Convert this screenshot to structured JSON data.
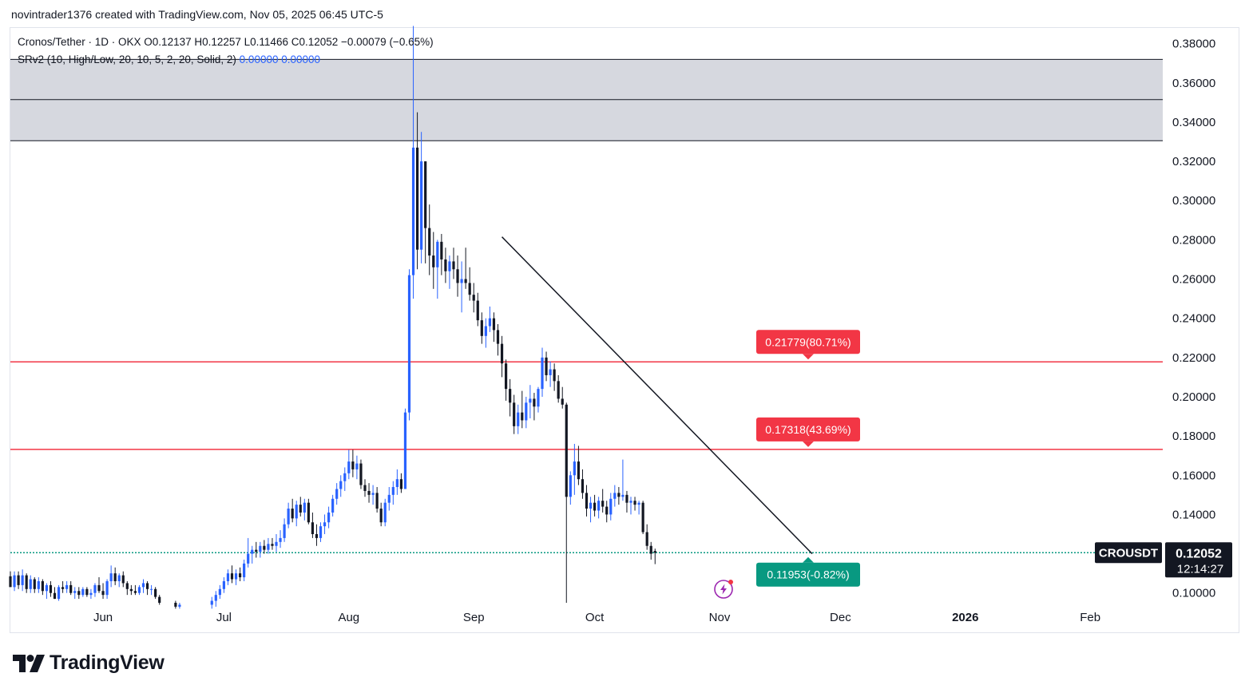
{
  "header": {
    "caption": "novintrader1376 created with TradingView.com, Nov 05, 2025 06:45 UTC-5"
  },
  "legend": {
    "line1": "Cronos/Tether · 1D · OKX  O0.12137  H0.12257  L0.11466  C0.12052  −0.00079 (−0.65%)",
    "line2_text": "SRv2 (10, High/Low, 20, 10, 5, 2, 20, Solid, 2) ",
    "line2_v1": "0.00000",
    "line2_v2": "0.00000"
  },
  "brand": {
    "name": "TradingView"
  },
  "colors": {
    "bull": "#2962ff",
    "bear": "#131722",
    "resistance": "#f23645",
    "support": "#089981",
    "zone": "#d1d4dc",
    "trendline": "#131722"
  },
  "icons": {
    "logo": "tradingview-logo-icon",
    "lightning": "lightning-bolt-icon"
  },
  "chart_data": {
    "type": "candlestick",
    "symbol": "CROUSDT",
    "timeframe": "1D",
    "last_price": "0.12052",
    "countdown": "12:14:27",
    "y_range": [
      0.095,
      0.388
    ],
    "y_ticks": [
      "0.38000",
      "0.36000",
      "0.34000",
      "0.32000",
      "0.30000",
      "0.28000",
      "0.26000",
      "0.24000",
      "0.22000",
      "0.20000",
      "0.18000",
      "0.16000",
      "0.14000",
      "0.12000",
      "0.10000"
    ],
    "x_ticks": [
      {
        "label": "Jun",
        "day": 0
      },
      {
        "label": "Jul",
        "day": 30
      },
      {
        "label": "Aug",
        "day": 61
      },
      {
        "label": "Sep",
        "day": 92
      },
      {
        "label": "Oct",
        "day": 122
      },
      {
        "label": "Nov",
        "day": 153
      },
      {
        "label": "Dec",
        "day": 183
      },
      {
        "label": "2026",
        "day": 214,
        "bold": true
      },
      {
        "label": "Feb",
        "day": 245
      }
    ],
    "x_day_range": [
      -23,
      263
    ],
    "zones": [
      {
        "low": 0.3305,
        "high": 0.372,
        "mid": 0.3515
      }
    ],
    "horizontal_lines": [
      {
        "price": 0.21779,
        "color": "resistance"
      },
      {
        "price": 0.17318,
        "color": "resistance"
      },
      {
        "price": 0.12052,
        "color": "support",
        "dotted": true
      }
    ],
    "target_labels": [
      {
        "text": "0.21779(80.71%)",
        "price": 0.21779,
        "color": "resistance",
        "day": 175
      },
      {
        "text": "0.17318(43.69%)",
        "price": 0.17318,
        "color": "resistance",
        "day": 175
      },
      {
        "text": "0.11953(-0.82%)",
        "price": 0.11953,
        "color": "support",
        "day": 175
      }
    ],
    "trendline": {
      "from": {
        "day": 99,
        "price": 0.2815
      },
      "to": {
        "day": 176,
        "price": 0.12
      }
    },
    "ohlc": [
      [
        -23,
        0.1085,
        0.111,
        0.104,
        0.103
      ],
      [
        -22,
        0.103,
        0.111,
        0.101,
        0.109
      ],
      [
        -21,
        0.109,
        0.111,
        0.102,
        0.104
      ],
      [
        -20,
        0.104,
        0.112,
        0.101,
        0.109
      ],
      [
        -19,
        0.109,
        0.11,
        0.1,
        0.102
      ],
      [
        -18,
        0.102,
        0.109,
        0.1,
        0.107
      ],
      [
        -17,
        0.107,
        0.108,
        0.1,
        0.102
      ],
      [
        -16,
        0.102,
        0.108,
        0.1,
        0.106
      ],
      [
        -15,
        0.106,
        0.107,
        0.099,
        0.101
      ],
      [
        -14,
        0.101,
        0.105,
        0.097,
        0.104
      ],
      [
        -13,
        0.104,
        0.106,
        0.098,
        0.1
      ],
      [
        -12,
        0.1,
        0.103,
        0.097,
        0.097
      ],
      [
        -11,
        0.097,
        0.104,
        0.096,
        0.103
      ],
      [
        -10,
        0.103,
        0.106,
        0.1,
        0.102
      ],
      [
        -9,
        0.102,
        0.106,
        0.1,
        0.104
      ],
      [
        -8,
        0.104,
        0.106,
        0.099,
        0.1
      ],
      [
        -7,
        0.1,
        0.103,
        0.097,
        0.101
      ],
      [
        -6,
        0.101,
        0.103,
        0.097,
        0.099
      ],
      [
        -5,
        0.099,
        0.103,
        0.098,
        0.102
      ],
      [
        -4,
        0.102,
        0.103,
        0.098,
        0.099
      ],
      [
        -3,
        0.099,
        0.102,
        0.097,
        0.1
      ],
      [
        -2,
        0.1,
        0.105,
        0.098,
        0.104
      ],
      [
        -1,
        0.104,
        0.108,
        0.1,
        0.101
      ],
      [
        0,
        0.101,
        0.105,
        0.097,
        0.099
      ],
      [
        1,
        0.099,
        0.107,
        0.097,
        0.106
      ],
      [
        2,
        0.106,
        0.114,
        0.103,
        0.11
      ],
      [
        3,
        0.11,
        0.113,
        0.104,
        0.106
      ],
      [
        4,
        0.106,
        0.11,
        0.103,
        0.109
      ],
      [
        5,
        0.109,
        0.111,
        0.103,
        0.105
      ],
      [
        6,
        0.105,
        0.106,
        0.099,
        0.102
      ],
      [
        7,
        0.102,
        0.104,
        0.099,
        0.101
      ],
      [
        8,
        0.101,
        0.104,
        0.099,
        0.1
      ],
      [
        9,
        0.1,
        0.104,
        0.099,
        0.103
      ],
      [
        10,
        0.103,
        0.107,
        0.1,
        0.105
      ],
      [
        11,
        0.105,
        0.106,
        0.099,
        0.102
      ],
      [
        12,
        0.102,
        0.104,
        0.099,
        0.102
      ],
      [
        13,
        0.102,
        0.103,
        0.097,
        0.098
      ],
      [
        14,
        0.098,
        0.099,
        0.094,
        0.095
      ],
      [
        18,
        0.095,
        0.096,
        0.092,
        0.093
      ],
      [
        19,
        0.093,
        0.095,
        0.092,
        0.094
      ],
      [
        27,
        0.094,
        0.098,
        0.092,
        0.096
      ],
      [
        28,
        0.096,
        0.101,
        0.093,
        0.099
      ],
      [
        29,
        0.099,
        0.104,
        0.097,
        0.102
      ],
      [
        30,
        0.102,
        0.108,
        0.1,
        0.106
      ],
      [
        31,
        0.106,
        0.112,
        0.104,
        0.11
      ],
      [
        32,
        0.11,
        0.114,
        0.105,
        0.107
      ],
      [
        33,
        0.107,
        0.112,
        0.104,
        0.11
      ],
      [
        34,
        0.11,
        0.113,
        0.106,
        0.108
      ],
      [
        35,
        0.108,
        0.117,
        0.106,
        0.115
      ],
      [
        36,
        0.115,
        0.128,
        0.113,
        0.12
      ],
      [
        37,
        0.12,
        0.124,
        0.115,
        0.122
      ],
      [
        38,
        0.122,
        0.126,
        0.118,
        0.121
      ],
      [
        39,
        0.121,
        0.126,
        0.118,
        0.124
      ],
      [
        40,
        0.124,
        0.127,
        0.12,
        0.122
      ],
      [
        41,
        0.122,
        0.128,
        0.12,
        0.125
      ],
      [
        42,
        0.125,
        0.128,
        0.122,
        0.124
      ],
      [
        43,
        0.124,
        0.13,
        0.121,
        0.126
      ],
      [
        44,
        0.126,
        0.132,
        0.123,
        0.128
      ],
      [
        45,
        0.128,
        0.138,
        0.126,
        0.135
      ],
      [
        46,
        0.135,
        0.146,
        0.133,
        0.143
      ],
      [
        47,
        0.143,
        0.148,
        0.136,
        0.138
      ],
      [
        48,
        0.138,
        0.147,
        0.134,
        0.145
      ],
      [
        49,
        0.145,
        0.149,
        0.139,
        0.141
      ],
      [
        50,
        0.141,
        0.148,
        0.137,
        0.146
      ],
      [
        51,
        0.146,
        0.148,
        0.135,
        0.136
      ],
      [
        52,
        0.136,
        0.141,
        0.128,
        0.13
      ],
      [
        53,
        0.13,
        0.135,
        0.124,
        0.128
      ],
      [
        54,
        0.128,
        0.136,
        0.126,
        0.134
      ],
      [
        55,
        0.134,
        0.14,
        0.13,
        0.136
      ],
      [
        56,
        0.136,
        0.144,
        0.133,
        0.141
      ],
      [
        57,
        0.141,
        0.15,
        0.139,
        0.148
      ],
      [
        58,
        0.148,
        0.156,
        0.145,
        0.153
      ],
      [
        59,
        0.153,
        0.16,
        0.149,
        0.157
      ],
      [
        60,
        0.157,
        0.164,
        0.152,
        0.161
      ],
      [
        61,
        0.161,
        0.173,
        0.158,
        0.167
      ],
      [
        62,
        0.167,
        0.173,
        0.159,
        0.163
      ],
      [
        63,
        0.163,
        0.17,
        0.158,
        0.166
      ],
      [
        64,
        0.166,
        0.168,
        0.153,
        0.155
      ],
      [
        65,
        0.155,
        0.158,
        0.149,
        0.152
      ],
      [
        66,
        0.152,
        0.156,
        0.146,
        0.15
      ],
      [
        67,
        0.15,
        0.155,
        0.145,
        0.151
      ],
      [
        68,
        0.151,
        0.154,
        0.141,
        0.143
      ],
      [
        69,
        0.143,
        0.146,
        0.134,
        0.136
      ],
      [
        70,
        0.136,
        0.148,
        0.134,
        0.146
      ],
      [
        71,
        0.146,
        0.154,
        0.142,
        0.15
      ],
      [
        72,
        0.15,
        0.157,
        0.145,
        0.154
      ],
      [
        73,
        0.154,
        0.163,
        0.15,
        0.158
      ],
      [
        74,
        0.158,
        0.161,
        0.151,
        0.153
      ],
      [
        75,
        0.153,
        0.194,
        0.153,
        0.192
      ],
      [
        76,
        0.192,
        0.265,
        0.188,
        0.262
      ],
      [
        77,
        0.262,
        0.389,
        0.25,
        0.327
      ],
      [
        78,
        0.327,
        0.345,
        0.265,
        0.275
      ],
      [
        79,
        0.275,
        0.335,
        0.268,
        0.32
      ],
      [
        80,
        0.32,
        0.32,
        0.268,
        0.286
      ],
      [
        81,
        0.286,
        0.298,
        0.262,
        0.272
      ],
      [
        82,
        0.272,
        0.284,
        0.255,
        0.266
      ],
      [
        83,
        0.266,
        0.28,
        0.25,
        0.279
      ],
      [
        84,
        0.279,
        0.283,
        0.262,
        0.27
      ],
      [
        85,
        0.27,
        0.276,
        0.258,
        0.264
      ],
      [
        86,
        0.264,
        0.272,
        0.255,
        0.269
      ],
      [
        87,
        0.269,
        0.276,
        0.26,
        0.265
      ],
      [
        88,
        0.265,
        0.272,
        0.251,
        0.258
      ],
      [
        89,
        0.258,
        0.269,
        0.243,
        0.26
      ],
      [
        90,
        0.26,
        0.276,
        0.255,
        0.258
      ],
      [
        91,
        0.258,
        0.266,
        0.249,
        0.252
      ],
      [
        92,
        0.252,
        0.258,
        0.243,
        0.249
      ],
      [
        93,
        0.249,
        0.253,
        0.236,
        0.239
      ],
      [
        94,
        0.239,
        0.243,
        0.227,
        0.231
      ],
      [
        95,
        0.231,
        0.24,
        0.225,
        0.236
      ],
      [
        96,
        0.236,
        0.246,
        0.233,
        0.24
      ],
      [
        97,
        0.24,
        0.243,
        0.228,
        0.234
      ],
      [
        98,
        0.234,
        0.237,
        0.221,
        0.227
      ],
      [
        99,
        0.227,
        0.231,
        0.21,
        0.217
      ],
      [
        100,
        0.217,
        0.219,
        0.198,
        0.204
      ],
      [
        101,
        0.204,
        0.209,
        0.19,
        0.197
      ],
      [
        102,
        0.197,
        0.201,
        0.181,
        0.185
      ],
      [
        103,
        0.185,
        0.196,
        0.181,
        0.192
      ],
      [
        104,
        0.192,
        0.203,
        0.184,
        0.188
      ],
      [
        105,
        0.188,
        0.2,
        0.184,
        0.197
      ],
      [
        106,
        0.197,
        0.206,
        0.189,
        0.199
      ],
      [
        107,
        0.199,
        0.202,
        0.188,
        0.195
      ],
      [
        108,
        0.195,
        0.205,
        0.192,
        0.204
      ],
      [
        109,
        0.204,
        0.225,
        0.2,
        0.22
      ],
      [
        110,
        0.22,
        0.223,
        0.208,
        0.211
      ],
      [
        111,
        0.211,
        0.218,
        0.205,
        0.214
      ],
      [
        112,
        0.214,
        0.217,
        0.203,
        0.208
      ],
      [
        113,
        0.208,
        0.211,
        0.197,
        0.199
      ],
      [
        114,
        0.199,
        0.205,
        0.194,
        0.196
      ],
      [
        115,
        0.196,
        0.197,
        0.095,
        0.149
      ],
      [
        116,
        0.149,
        0.162,
        0.145,
        0.16
      ],
      [
        117,
        0.16,
        0.176,
        0.15,
        0.167
      ],
      [
        118,
        0.167,
        0.175,
        0.155,
        0.158
      ],
      [
        119,
        0.158,
        0.163,
        0.148,
        0.151
      ],
      [
        120,
        0.151,
        0.155,
        0.139,
        0.143
      ],
      [
        121,
        0.143,
        0.149,
        0.136,
        0.146
      ],
      [
        122,
        0.146,
        0.15,
        0.139,
        0.142
      ],
      [
        123,
        0.142,
        0.149,
        0.138,
        0.147
      ],
      [
        124,
        0.147,
        0.153,
        0.141,
        0.144
      ],
      [
        125,
        0.144,
        0.147,
        0.136,
        0.14
      ],
      [
        126,
        0.14,
        0.151,
        0.137,
        0.148
      ],
      [
        127,
        0.148,
        0.155,
        0.144,
        0.151
      ],
      [
        128,
        0.151,
        0.154,
        0.145,
        0.149
      ],
      [
        129,
        0.149,
        0.168,
        0.147,
        0.15
      ],
      [
        130,
        0.15,
        0.152,
        0.141,
        0.146
      ],
      [
        131,
        0.146,
        0.149,
        0.14,
        0.147
      ],
      [
        132,
        0.147,
        0.149,
        0.142,
        0.145
      ],
      [
        133,
        0.145,
        0.147,
        0.14,
        0.146
      ],
      [
        134,
        0.146,
        0.147,
        0.13,
        0.131
      ],
      [
        135,
        0.131,
        0.135,
        0.122,
        0.124
      ],
      [
        136,
        0.124,
        0.126,
        0.117,
        0.12
      ],
      [
        137,
        0.1214,
        0.1226,
        0.1147,
        0.1205
      ]
    ]
  }
}
